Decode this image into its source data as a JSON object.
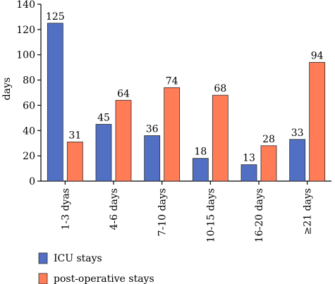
{
  "chart_data": {
    "type": "bar",
    "categories": [
      "1-3 dyas",
      "4-6 days",
      "7-10 days",
      "10-15 days",
      "16-20 days",
      "≥21 days"
    ],
    "series": [
      {
        "name": "ICU stays",
        "values": [
          125,
          45,
          36,
          18,
          13,
          33
        ],
        "color": "#5170C4"
      },
      {
        "name": "post-operative stays",
        "values": [
          31,
          64,
          74,
          68,
          28,
          94
        ],
        "color": "#FF7C57"
      }
    ],
    "ylabel": "days",
    "ylim": [
      0,
      140
    ],
    "yticks": [
      0,
      20,
      40,
      60,
      80,
      100,
      120,
      140
    ],
    "grid": false,
    "legend": "bottom-left",
    "data_labels": true
  }
}
